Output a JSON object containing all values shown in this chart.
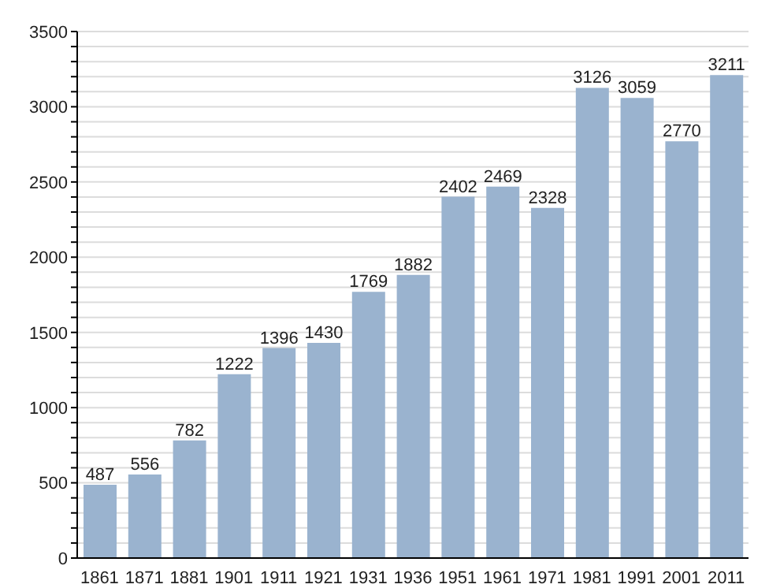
{
  "chart_data": {
    "type": "bar",
    "categories": [
      "1861",
      "1871",
      "1881",
      "1901",
      "1911",
      "1921",
      "1931",
      "1936",
      "1951",
      "1961",
      "1971",
      "1981",
      "1991",
      "2001",
      "2011"
    ],
    "values": [
      487,
      556,
      782,
      1222,
      1396,
      1430,
      1769,
      1882,
      2402,
      2469,
      2328,
      3126,
      3059,
      2770,
      3211
    ],
    "color": "#9ab3cf",
    "ylim": [
      0,
      3500
    ],
    "yticks": [
      0,
      {
        "value": 100,
        "label": null
      },
      {
        "value": 200,
        "label": null
      },
      {
        "value": 300,
        "label": null
      },
      {
        "value": 400,
        "label": null
      },
      500,
      {
        "value": 600,
        "label": null
      },
      {
        "value": 700,
        "label": null
      },
      {
        "value": 800,
        "label": null
      },
      {
        "value": 900,
        "label": null
      },
      1000,
      {
        "value": 1100,
        "label": null
      },
      {
        "value": 1200,
        "label": null
      },
      {
        "value": 1300,
        "label": null
      },
      {
        "value": 1400,
        "label": null
      },
      1500,
      {
        "value": 1600,
        "label": null
      },
      {
        "value": 1700,
        "label": null
      },
      {
        "value": 1800,
        "label": null
      },
      {
        "value": 1900,
        "label": null
      },
      2000,
      {
        "value": 2100,
        "label": null
      },
      {
        "value": 2200,
        "label": null
      },
      {
        "value": 2300,
        "label": null
      },
      {
        "value": 2400,
        "label": null
      },
      2500,
      {
        "value": 2600,
        "label": null
      },
      {
        "value": 2700,
        "label": null
      },
      {
        "value": 2800,
        "label": null
      },
      {
        "value": 2900,
        "label": null
      },
      3000,
      {
        "value": 3100,
        "label": null
      },
      {
        "value": 3200,
        "label": null
      },
      {
        "value": 3300,
        "label": null
      },
      {
        "value": 3400,
        "label": null
      },
      3500
    ],
    "grid": "y",
    "data_labels": true
  }
}
